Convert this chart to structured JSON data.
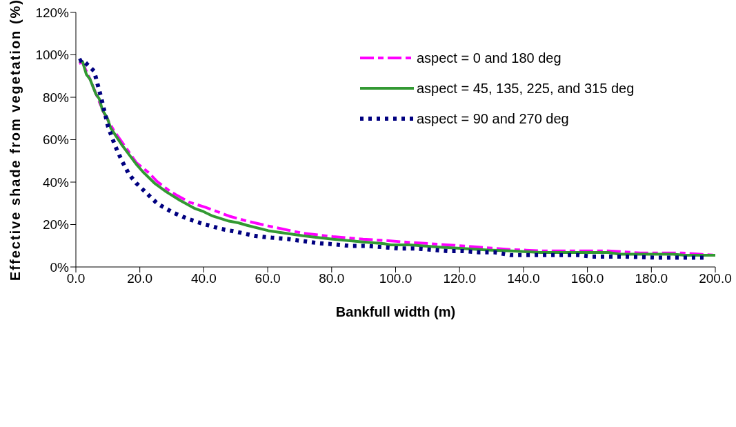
{
  "chart_data": {
    "type": "line",
    "xlabel": "Bankfull width (m)",
    "ylabel": "Effective shade from vegetation (%)",
    "xlim": [
      0,
      200
    ],
    "ylim": [
      0,
      120
    ],
    "xticks": [
      {
        "value": 0,
        "label": "0.0"
      },
      {
        "value": 20,
        "label": "20.0"
      },
      {
        "value": 40,
        "label": "40.0"
      },
      {
        "value": 60,
        "label": "60.0"
      },
      {
        "value": 80,
        "label": "80.0"
      },
      {
        "value": 100,
        "label": "100.0"
      },
      {
        "value": 120,
        "label": "120.0"
      },
      {
        "value": 140,
        "label": "140.0"
      },
      {
        "value": 160,
        "label": "160.0"
      },
      {
        "value": 180,
        "label": "180.0"
      },
      {
        "value": 200,
        "label": "200.0"
      }
    ],
    "yticks": [
      {
        "value": 0,
        "label": "0%"
      },
      {
        "value": 20,
        "label": "20%"
      },
      {
        "value": 40,
        "label": "40%"
      },
      {
        "value": 60,
        "label": "60%"
      },
      {
        "value": 80,
        "label": "80%"
      },
      {
        "value": 100,
        "label": "100%"
      },
      {
        "value": 120,
        "label": "120%"
      }
    ],
    "grid": false,
    "legend": "top right",
    "marker": "none",
    "series": [
      {
        "name": "aspect = 0 and 180 deg",
        "color": "#ff00ff",
        "line_style": "dashed",
        "x": [
          1,
          2,
          4,
          6.5,
          8.7,
          12,
          15.9,
          18.9,
          22.8,
          25.4,
          29.7,
          35.5,
          40.6,
          47.9,
          53.6,
          60.2,
          71,
          80.4,
          89.8,
          96.4,
          105,
          114.5,
          125.4,
          136.3,
          145.5,
          158,
          166.5,
          176.6,
          189.5,
          200
        ],
        "values": [
          96,
          96.5,
          90,
          80.9,
          72.8,
          64,
          55.7,
          49.2,
          44.4,
          40.3,
          35.4,
          30.5,
          28.1,
          24,
          21.6,
          19.3,
          15.9,
          14.3,
          13.1,
          12.5,
          11.5,
          10.6,
          9.4,
          8.2,
          7.6,
          7.6,
          7.6,
          6.6,
          6.6,
          5.5
        ]
      },
      {
        "name": "aspect = 45, 135, 225, and 315 deg",
        "color": "#339933",
        "line_style": "solid",
        "x": [
          1,
          2.1,
          3.3,
          4.4,
          6.2,
          7.3,
          8.3,
          9.8,
          10.9,
          14.5,
          18.9,
          21,
          24.6,
          28.3,
          32.6,
          37,
          39.9,
          42.8,
          47.9,
          50.8,
          53.6,
          60.2,
          71,
          74.6,
          80.4,
          89.1,
          96.4,
          98.5,
          104.3,
          114.5,
          120.3,
          129,
          136.3,
          145.2,
          166.5,
          170.2,
          186.8,
          190.4,
          200
        ],
        "values": [
          97,
          96.8,
          90.7,
          88.6,
          81.7,
          79.3,
          74,
          70.3,
          65.5,
          57.3,
          48.4,
          44.8,
          39.5,
          35.4,
          31.4,
          27.7,
          26.1,
          24,
          21.6,
          20.8,
          19.6,
          17.1,
          14.7,
          14.1,
          13.1,
          11.9,
          11,
          10.4,
          10.4,
          9.3,
          8.8,
          8,
          7.6,
          6.8,
          6.8,
          6,
          6,
          5.5,
          5.5
        ]
      },
      {
        "name": "aspect = 90 and 270 deg",
        "color": "#000080",
        "line_style": "dotted",
        "x": [
          1,
          2,
          5.7,
          8,
          10.1,
          12.3,
          14.5,
          16.7,
          18.9,
          21.4,
          25.4,
          30.4,
          35.5,
          40.6,
          45.6,
          51,
          56.2,
          61.2,
          66.3,
          71,
          76,
          81.2,
          86.2,
          91.2,
          96.3,
          101.1,
          106.2,
          111.2,
          116.2,
          121.1,
          126,
          131,
          136,
          146,
          157,
          161.4,
          171.4,
          181.4,
          196.4
        ],
        "values": [
          97,
          97.8,
          92.3,
          79.3,
          66,
          57,
          49.7,
          43.5,
          39.5,
          35.8,
          30,
          25.6,
          22.4,
          20,
          17.9,
          16.3,
          14.6,
          13.8,
          13.2,
          12.2,
          11.2,
          10.6,
          9.9,
          9.9,
          9.3,
          8.7,
          8.7,
          8.1,
          7.5,
          7.5,
          6.9,
          6.9,
          5.6,
          5.6,
          5.6,
          4.9,
          4.9,
          4.4,
          4.4
        ]
      }
    ]
  }
}
